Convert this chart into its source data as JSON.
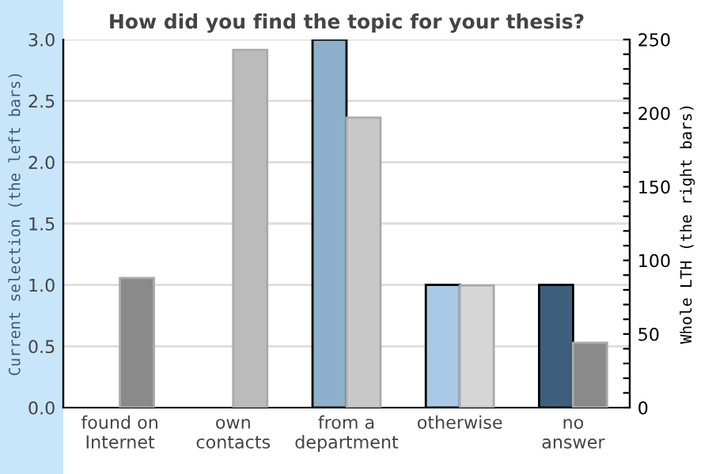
{
  "chart_data": {
    "type": "bar",
    "title": "How did you find the topic for your thesis?",
    "categories": [
      "found on\nInternet",
      "own\ncontacts",
      "from a\ndepartment",
      "otherwise",
      "no\nanswer"
    ],
    "ylabel": "Current selection (the left bars)",
    "y2label": "Whole LTH (the right bars)",
    "series": [
      {
        "colors": [
          "#8fb0cc",
          "#8fb0cc",
          "#8fb0cc",
          "#a8cae6",
          "#3e5f7c"
        ],
        "values": [
          null,
          null,
          3.0,
          1.0,
          1.0
        ]
      },
      {
        "axis": "y2",
        "colors": [
          "#8a8a8a",
          "#bbbbbb",
          "#c8c8c8",
          "#d6d6d6",
          "#8a8a8a"
        ],
        "values": [
          88,
          243,
          197,
          83,
          44
        ]
      }
    ],
    "ylim": [
      0,
      3
    ],
    "yticks": [
      {
        "value": 0,
        "label": "0.0"
      },
      {
        "value": 0.5,
        "label": "0.5"
      },
      {
        "value": 1,
        "label": "1.0"
      },
      {
        "value": 1.5,
        "label": "1.5"
      },
      {
        "value": 2,
        "label": "2.0"
      },
      {
        "value": 2.5,
        "label": "2.5"
      },
      {
        "value": 3,
        "label": "3.0"
      }
    ],
    "y2lim": [
      0,
      250
    ],
    "y2ticks": [
      0,
      {
        "value": 10,
        "label": null
      },
      {
        "value": 20,
        "label": null
      },
      {
        "value": 30,
        "label": null
      },
      {
        "value": 40,
        "label": null
      },
      50,
      {
        "value": 60,
        "label": null
      },
      {
        "value": 70,
        "label": null
      },
      {
        "value": 80,
        "label": null
      },
      {
        "value": 90,
        "label": null
      },
      100,
      {
        "value": 110,
        "label": null
      },
      {
        "value": 120,
        "label": null
      },
      {
        "value": 130,
        "label": null
      },
      {
        "value": 140,
        "label": null
      },
      150,
      {
        "value": 160,
        "label": null
      },
      {
        "value": 170,
        "label": null
      },
      {
        "value": 180,
        "label": null
      },
      {
        "value": 190,
        "label": null
      },
      200,
      {
        "value": 210,
        "label": null
      },
      {
        "value": 220,
        "label": null
      },
      {
        "value": 230,
        "label": null
      },
      {
        "value": 240,
        "label": null
      },
      250
    ],
    "grid": "y"
  }
}
